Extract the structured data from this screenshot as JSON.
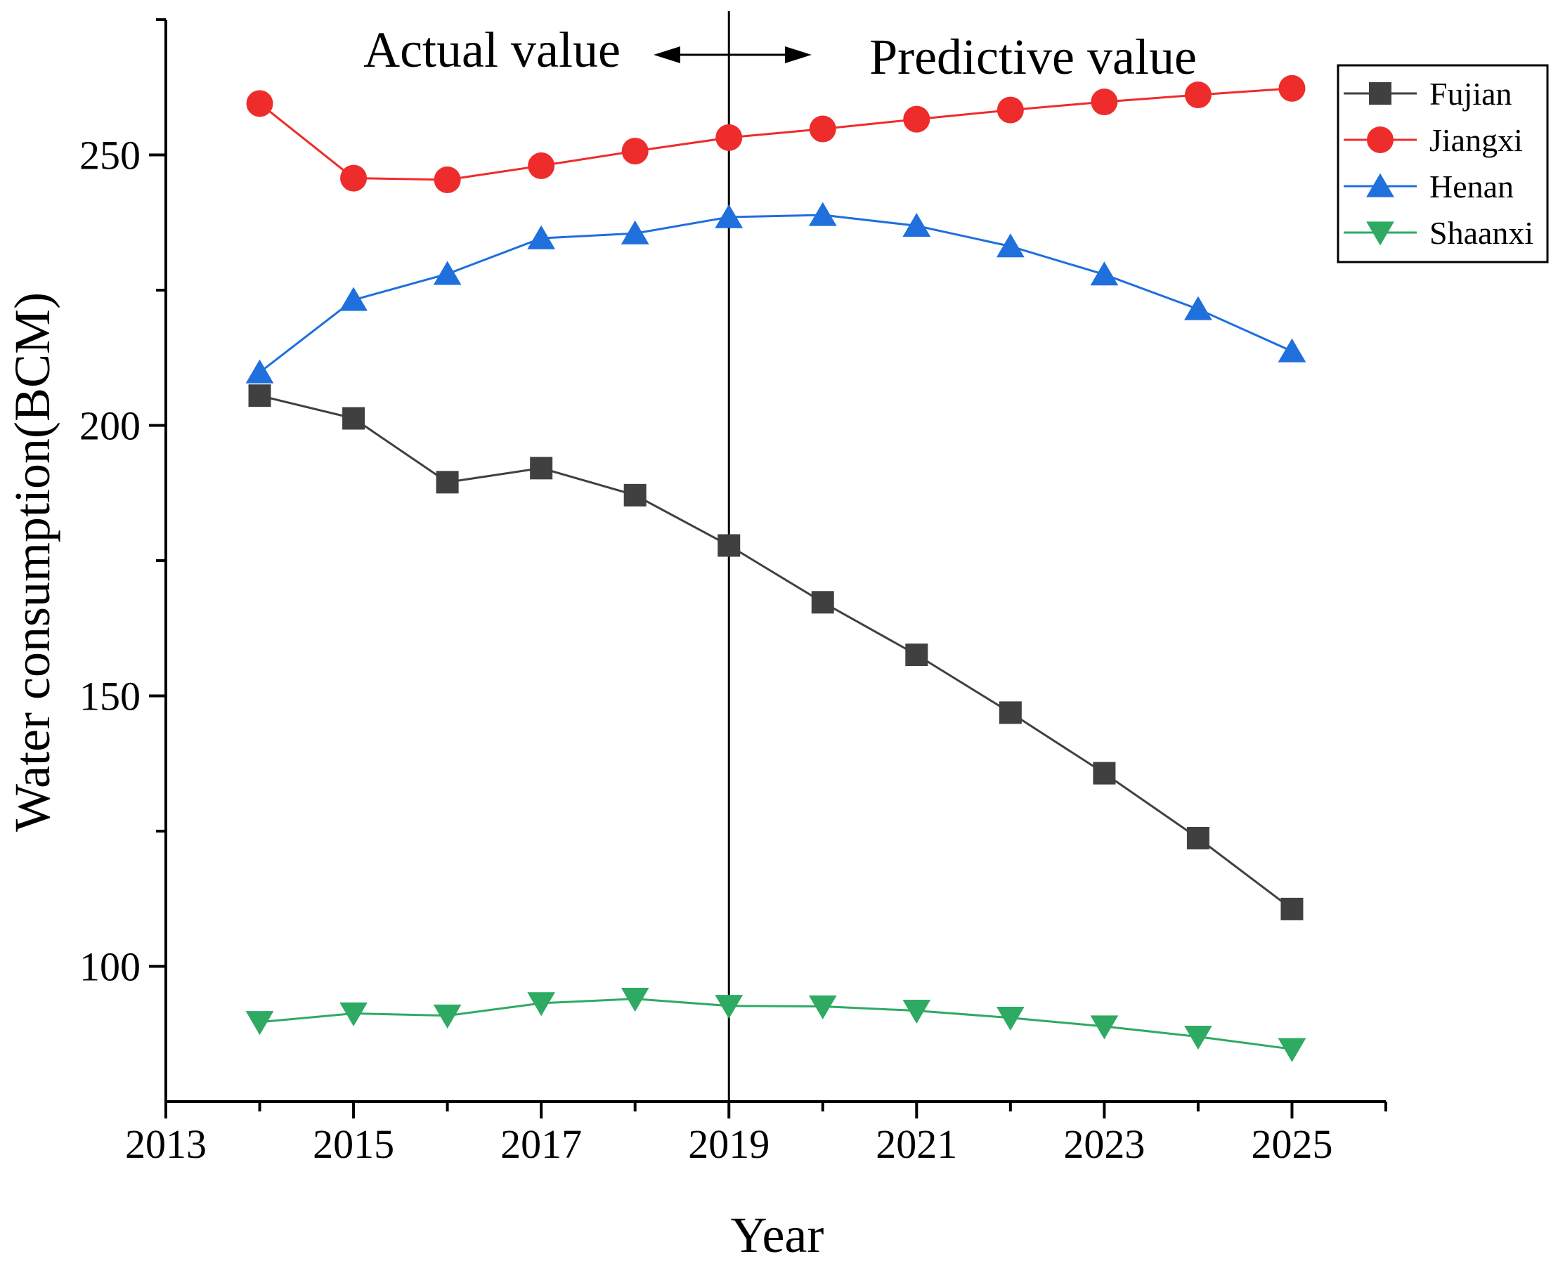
{
  "chart_data": {
    "type": "line",
    "title": "",
    "xlabel": "Year",
    "ylabel": "Water consumption(BCM)",
    "xlim": [
      2013,
      2026
    ],
    "ylim": [
      75,
      275
    ],
    "x_ticks": [
      2013,
      2015,
      2017,
      2019,
      2021,
      2023,
      2025
    ],
    "x_tick_labels": [
      "2013",
      "2015",
      "2017",
      "2019",
      "2021",
      "2023",
      "2025"
    ],
    "y_ticks": [
      100,
      150,
      200,
      250
    ],
    "y_tick_labels": [
      "100",
      "150",
      "200",
      "250"
    ],
    "grid": false,
    "legend_position": "top-right",
    "divider_x": 2019,
    "annotations": {
      "left": "Actual value",
      "right": "Predictive value"
    },
    "x": [
      2014,
      2015,
      2016,
      2017,
      2018,
      2019,
      2020,
      2021,
      2022,
      2023,
      2024,
      2025
    ],
    "series": [
      {
        "name": "Fujian",
        "color": "#404040",
        "marker": "square",
        "values": [
          205.5,
          201.3,
          189.5,
          192.1,
          187.1,
          177.8,
          167.3,
          157.6,
          146.9,
          135.7,
          123.7,
          110.6
        ]
      },
      {
        "name": "Jiangxi",
        "color": "#ee2c2c",
        "marker": "circle",
        "values": [
          259.5,
          245.7,
          245.4,
          248.0,
          250.7,
          253.2,
          254.8,
          256.6,
          258.3,
          259.8,
          261.1,
          262.3
        ]
      },
      {
        "name": "Henan",
        "color": "#1f6fdd",
        "marker": "triangle-up",
        "values": [
          209.8,
          223.2,
          228.0,
          234.6,
          235.5,
          238.5,
          238.9,
          236.9,
          233.1,
          227.9,
          221.5,
          213.7
        ]
      },
      {
        "name": "Shaanxi",
        "color": "#2eaa63",
        "marker": "triangle-down",
        "values": [
          89.7,
          91.3,
          90.9,
          93.2,
          94.0,
          92.7,
          92.6,
          91.8,
          90.5,
          88.9,
          87.0,
          84.7
        ]
      }
    ]
  }
}
